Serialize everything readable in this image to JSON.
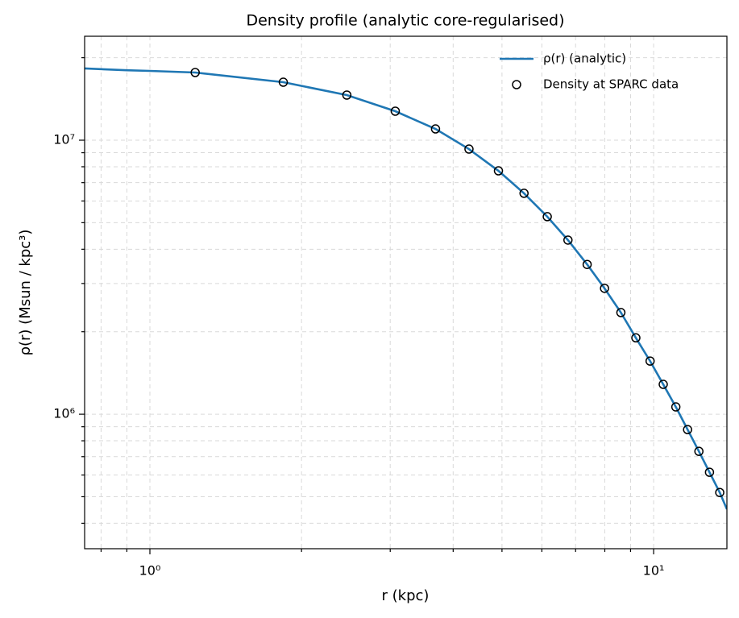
{
  "chart_data": {
    "type": "line",
    "title": "Density profile (analytic core-regularised)",
    "xlabel": "r (kpc)",
    "ylabel": "ρ(r) (Msun / kpc³)",
    "xscale": "log",
    "yscale": "log",
    "grid": true,
    "legend": "upper right",
    "xlim": [
      0.742,
      13.98
    ],
    "ylim": [
      323000,
      23950000
    ],
    "xticks": [
      {
        "value": 1,
        "label": "10⁰"
      },
      {
        "value": 10,
        "label": "10¹"
      }
    ],
    "yticks": [
      {
        "value": 1000000,
        "label": "10⁶"
      },
      {
        "value": 10000000,
        "label": "10⁷"
      }
    ],
    "xminorticks": [
      0.8,
      0.9,
      2,
      3,
      4,
      5,
      6,
      7,
      8,
      9
    ],
    "yminorticks": [
      400000,
      500000,
      600000,
      700000,
      800000,
      900000,
      2000000,
      3000000,
      4000000,
      5000000,
      6000000,
      7000000,
      8000000,
      9000000,
      20000000
    ],
    "series": [
      {
        "name": "ρ(r) (analytic)",
        "type": "line",
        "color": "#1f77b4",
        "x": [
          0.742,
          0.9,
          1.0,
          1.23,
          1.84,
          2.46,
          3.07,
          3.69,
          4.3,
          4.92,
          5.53,
          6.15,
          6.76,
          7.38,
          7.99,
          8.61,
          9.22,
          9.84,
          10.45,
          11.07,
          11.68,
          12.3,
          12.91,
          13.53,
          13.98
        ],
        "values": [
          18270000,
          18000000,
          17900000,
          17660000,
          16280000,
          14610000,
          12760000,
          10990000,
          9280000,
          7730000,
          6400000,
          5260000,
          4320000,
          3520000,
          2880000,
          2350000,
          1900000,
          1563000,
          1285000,
          1063000,
          879000,
          732000,
          614000,
          518000,
          450000
        ]
      },
      {
        "name": "Density at SPARC data",
        "type": "scatter",
        "color": "#000000",
        "x": [
          1.23,
          1.84,
          2.46,
          3.07,
          3.69,
          4.3,
          4.92,
          5.53,
          6.15,
          6.76,
          7.38,
          7.99,
          8.61,
          9.22,
          9.84,
          10.45,
          11.07,
          11.68,
          12.3,
          12.91,
          13.53
        ],
        "values": [
          17660000,
          16280000,
          14610000,
          12760000,
          10990000,
          9280000,
          7730000,
          6400000,
          5260000,
          4320000,
          3520000,
          2880000,
          2350000,
          1900000,
          1563000,
          1285000,
          1063000,
          879000,
          732000,
          614000,
          518000
        ]
      }
    ]
  }
}
